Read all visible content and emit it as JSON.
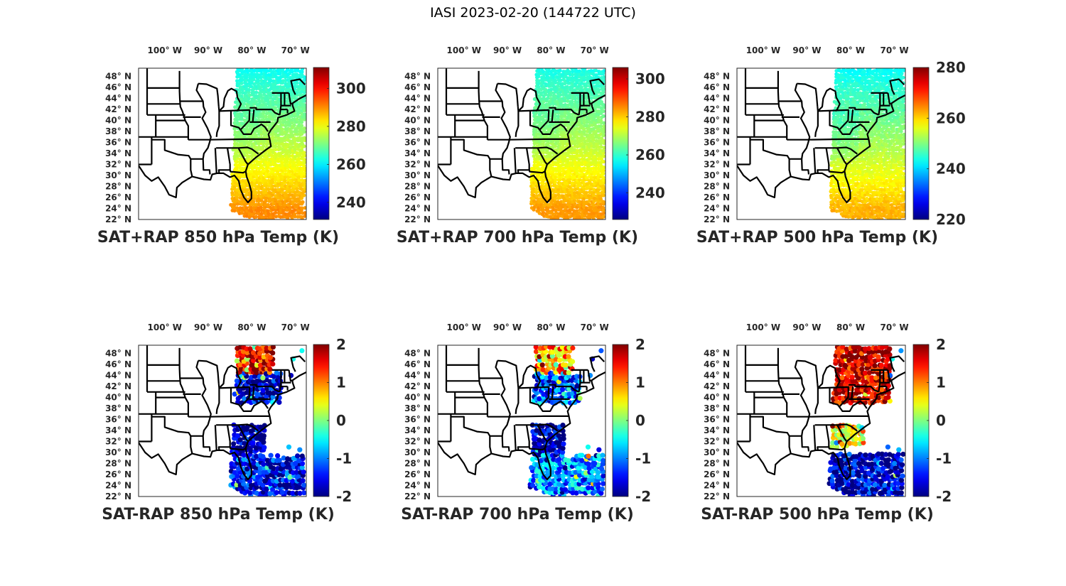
{
  "figure": {
    "title": "IASI 2023-02-20 (144722 UTC)"
  },
  "chart_data": [
    {
      "type": "heatmap",
      "subtype": "geographic-scatter-map",
      "title": "SAT+RAP 850 hPa Temp (K)",
      "x_ticklabels": [
        "100° W",
        "90° W",
        "80° W",
        "70° W"
      ],
      "x_ticks": [
        -100,
        -90,
        -80,
        -70
      ],
      "y_ticklabels": [
        "48° N",
        "46° N",
        "44° N",
        "42° N",
        "40° N",
        "38° N",
        "36° N",
        "34° N",
        "32° N",
        "30° N",
        "28° N",
        "26° N",
        "24° N",
        "22° N"
      ],
      "y_ticks": [
        48,
        46,
        44,
        42,
        40,
        38,
        36,
        34,
        32,
        30,
        28,
        26,
        24,
        22
      ],
      "xlim": [
        -106,
        -67.5
      ],
      "ylim": [
        22,
        49.5
      ],
      "colorbar": {
        "colormap": "jet",
        "clim": [
          231,
          311
        ],
        "ticks": [
          240,
          260,
          280,
          300
        ],
        "ticklabels": [
          "240",
          "260",
          "280",
          "300"
        ]
      },
      "field": {
        "kind": "absolute",
        "north_value": 262,
        "south_value": 290,
        "north_lat": 49,
        "south_lat": 24
      },
      "swath": {
        "west_lon_north": -83.5,
        "west_lon_south": -85,
        "east_lon": -67.8,
        "north_lat": 49.5,
        "south_lat": 22
      }
    },
    {
      "type": "heatmap",
      "subtype": "geographic-scatter-map",
      "title": "SAT+RAP 700 hPa Temp (K)",
      "x_ticklabels": [
        "100° W",
        "90° W",
        "80° W",
        "70° W"
      ],
      "x_ticks": [
        -100,
        -90,
        -80,
        -70
      ],
      "y_ticklabels": [
        "48° N",
        "46° N",
        "44° N",
        "42° N",
        "40° N",
        "38° N",
        "36° N",
        "34° N",
        "32° N",
        "30° N",
        "28° N",
        "26° N",
        "24° N",
        "22° N"
      ],
      "y_ticks": [
        48,
        46,
        44,
        42,
        40,
        38,
        36,
        34,
        32,
        30,
        28,
        26,
        24,
        22
      ],
      "xlim": [
        -106,
        -67.5
      ],
      "ylim": [
        22,
        49.5
      ],
      "colorbar": {
        "colormap": "jet",
        "clim": [
          226,
          306
        ],
        "ticks": [
          240,
          260,
          280,
          300
        ],
        "ticklabels": [
          "240",
          "260",
          "280",
          "300"
        ]
      },
      "field": {
        "kind": "absolute",
        "north_value": 258,
        "south_value": 284,
        "north_lat": 49,
        "south_lat": 24
      },
      "swath": {
        "west_lon_north": -83.5,
        "west_lon_south": -85,
        "east_lon": -67.8,
        "north_lat": 49.5,
        "south_lat": 22
      }
    },
    {
      "type": "heatmap",
      "subtype": "geographic-scatter-map",
      "title": "SAT+RAP 500 hPa Temp (K)",
      "x_ticklabels": [
        "100° W",
        "90° W",
        "80° W",
        "70° W"
      ],
      "x_ticks": [
        -100,
        -90,
        -80,
        -70
      ],
      "y_ticklabels": [
        "48° N",
        "46° N",
        "44° N",
        "42° N",
        "40° N",
        "38° N",
        "36° N",
        "34° N",
        "32° N",
        "30° N",
        "28° N",
        "26° N",
        "24° N",
        "22° N"
      ],
      "y_ticks": [
        48,
        46,
        44,
        42,
        40,
        38,
        36,
        34,
        32,
        30,
        28,
        26,
        24,
        22
      ],
      "xlim": [
        -106,
        -67.5
      ],
      "ylim": [
        22,
        49.5
      ],
      "colorbar": {
        "colormap": "jet",
        "clim": [
          220,
          280
        ],
        "ticks": [
          220,
          240,
          260,
          280
        ],
        "ticklabels": [
          "220",
          "240",
          "260",
          "280"
        ]
      },
      "field": {
        "kind": "absolute",
        "north_value": 243,
        "south_value": 262,
        "north_lat": 49,
        "south_lat": 24
      },
      "swath": {
        "west_lon_north": -83.5,
        "west_lon_south": -85,
        "east_lon": -67.8,
        "north_lat": 49.5,
        "south_lat": 22
      }
    },
    {
      "type": "heatmap",
      "subtype": "geographic-scatter-map",
      "title": "SAT-RAP 850 hPa Temp (K)",
      "x_ticklabels": [
        "100° W",
        "90° W",
        "80° W",
        "70° W"
      ],
      "x_ticks": [
        -100,
        -90,
        -80,
        -70
      ],
      "y_ticklabels": [
        "48° N",
        "46° N",
        "44° N",
        "42° N",
        "40° N",
        "38° N",
        "36° N",
        "34° N",
        "32° N",
        "30° N",
        "28° N",
        "26° N",
        "24° N",
        "22° N"
      ],
      "y_ticks": [
        48,
        46,
        44,
        42,
        40,
        38,
        36,
        34,
        32,
        30,
        28,
        26,
        24,
        22
      ],
      "xlim": [
        -106,
        -67.5
      ],
      "ylim": [
        22,
        49.5
      ],
      "colorbar": {
        "colormap": "jet",
        "clim": [
          -2,
          2
        ],
        "ticks": [
          -2,
          -1,
          0,
          1,
          2
        ],
        "ticklabels": [
          "-2",
          "-1",
          "0",
          "1",
          "2"
        ]
      },
      "field": {
        "kind": "difference",
        "regions": [
          {
            "name": "northern-block",
            "lat": [
              44.5,
              49.5
            ],
            "lon": [
              -83.5,
              -75
            ],
            "mean": 1.6
          },
          {
            "name": "great-lakes",
            "lat": [
              39,
              44.5
            ],
            "lon": [
              -84,
              -73
            ],
            "mean": -1.6
          },
          {
            "name": "southeast",
            "lat": [
              29.5,
              35
            ],
            "lon": [
              -85,
              -77
            ],
            "mean": -1.9
          },
          {
            "name": "gulf-atlantic",
            "lat": [
              22,
              29.5
            ],
            "lon": [
              -85,
              -68
            ],
            "mean": -1.5
          }
        ]
      }
    },
    {
      "type": "heatmap",
      "subtype": "geographic-scatter-map",
      "title": "SAT-RAP 700 hPa Temp (K)",
      "x_ticklabels": [
        "100° W",
        "90° W",
        "80° W",
        "70° W"
      ],
      "x_ticks": [
        -100,
        -90,
        -80,
        -70
      ],
      "y_ticklabels": [
        "48° N",
        "46° N",
        "44° N",
        "42° N",
        "40° N",
        "38° N",
        "36° N",
        "34° N",
        "32° N",
        "30° N",
        "28° N",
        "26° N",
        "24° N",
        "22° N"
      ],
      "y_ticks": [
        48,
        46,
        44,
        42,
        40,
        38,
        36,
        34,
        32,
        30,
        28,
        26,
        24,
        22
      ],
      "xlim": [
        -106,
        -67.5
      ],
      "ylim": [
        22,
        49.5
      ],
      "colorbar": {
        "colormap": "jet",
        "clim": [
          -2,
          2
        ],
        "ticks": [
          -2,
          -1,
          0,
          1,
          2
        ],
        "ticklabels": [
          "-2",
          "-1",
          "0",
          "1",
          "2"
        ]
      },
      "field": {
        "kind": "difference",
        "regions": [
          {
            "name": "northern-block",
            "lat": [
              44.5,
              49.5
            ],
            "lon": [
              -83.5,
              -75
            ],
            "mean": 0.9
          },
          {
            "name": "great-lakes",
            "lat": [
              39,
              44.5
            ],
            "lon": [
              -84,
              -73
            ],
            "mean": -1.2
          },
          {
            "name": "southeast",
            "lat": [
              29.5,
              35
            ],
            "lon": [
              -85,
              -77
            ],
            "mean": -1.8
          },
          {
            "name": "gulf-atlantic",
            "lat": [
              22,
              29.5
            ],
            "lon": [
              -85,
              -68
            ],
            "mean": -1.0
          }
        ]
      }
    },
    {
      "type": "heatmap",
      "subtype": "geographic-scatter-map",
      "title": "SAT-RAP 500 hPa Temp (K)",
      "x_ticklabels": [
        "100° W",
        "90° W",
        "80° W",
        "70° W"
      ],
      "x_ticks": [
        -100,
        -90,
        -80,
        -70
      ],
      "y_ticklabels": [
        "48° N",
        "46° N",
        "44° N",
        "42° N",
        "40° N",
        "38° N",
        "36° N",
        "34° N",
        "32° N",
        "30° N",
        "28° N",
        "26° N",
        "24° N",
        "22° N"
      ],
      "y_ticks": [
        48,
        46,
        44,
        42,
        40,
        38,
        36,
        34,
        32,
        30,
        28,
        26,
        24,
        22
      ],
      "xlim": [
        -106,
        -67.5
      ],
      "ylim": [
        22,
        49.5
      ],
      "colorbar": {
        "colormap": "jet",
        "clim": [
          -2,
          2
        ],
        "ticks": [
          -2,
          -1,
          0,
          1,
          2
        ],
        "ticklabels": [
          "-2",
          "-1",
          "0",
          "1",
          "2"
        ]
      },
      "field": {
        "kind": "difference",
        "regions": [
          {
            "name": "northern-block",
            "lat": [
              39,
              49.5
            ],
            "lon": [
              -84.5,
              -71
            ],
            "mean": 1.7
          },
          {
            "name": "southeast",
            "lat": [
              31,
              35
            ],
            "lon": [
              -85,
              -77
            ],
            "mean": 0.6
          },
          {
            "name": "gulf-atlantic",
            "lat": [
              22,
              30
            ],
            "lon": [
              -85,
              -68
            ],
            "mean": -1.7
          }
        ]
      }
    }
  ]
}
